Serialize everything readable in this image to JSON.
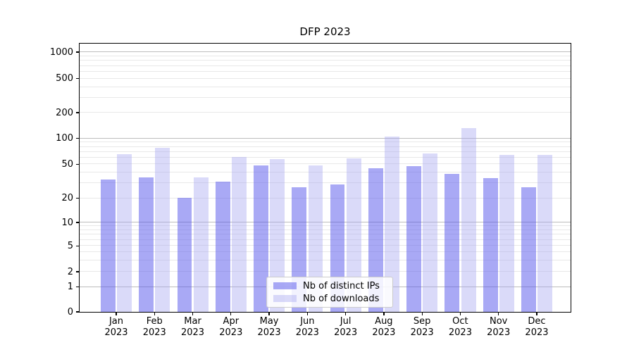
{
  "title": "DFP 2023",
  "chart_data": {
    "type": "bar",
    "title": "DFP 2023",
    "yscale": "symlog",
    "grid": true,
    "legend_position": "lower center",
    "xlabel": "",
    "ylabel": "",
    "ylim": [
      0,
      1250
    ],
    "yticks": [
      0,
      1,
      2,
      5,
      10,
      20,
      50,
      100,
      200,
      500,
      1000
    ],
    "categories": [
      "Jan 2023",
      "Feb 2023",
      "Mar 2023",
      "Apr 2023",
      "May 2023",
      "Jun 2023",
      "Jul 2023",
      "Aug 2023",
      "Sep 2023",
      "Oct 2023",
      "Nov 2023",
      "Dec 2023"
    ],
    "series": [
      {
        "name": "Nb of distinct IPs",
        "color": "#aaaaf5",
        "values": [
          33,
          35,
          20,
          31,
          48,
          27,
          29,
          45,
          47,
          38,
          34,
          27
        ]
      },
      {
        "name": "Nb of downloads",
        "color": "#dadaf9",
        "values": [
          65,
          77,
          35,
          60,
          57,
          48,
          58,
          105,
          67,
          132,
          64,
          64
        ]
      }
    ]
  },
  "colors": {
    "bar_dark": "#aaaaf5",
    "bar_light": "#dadaf9",
    "grid_major": "#bdbdbd",
    "grid_minor": "#e8e8e8",
    "spine": "#000000",
    "background": "#ffffff",
    "legend_border": "#cccccc",
    "text": "#000000"
  }
}
